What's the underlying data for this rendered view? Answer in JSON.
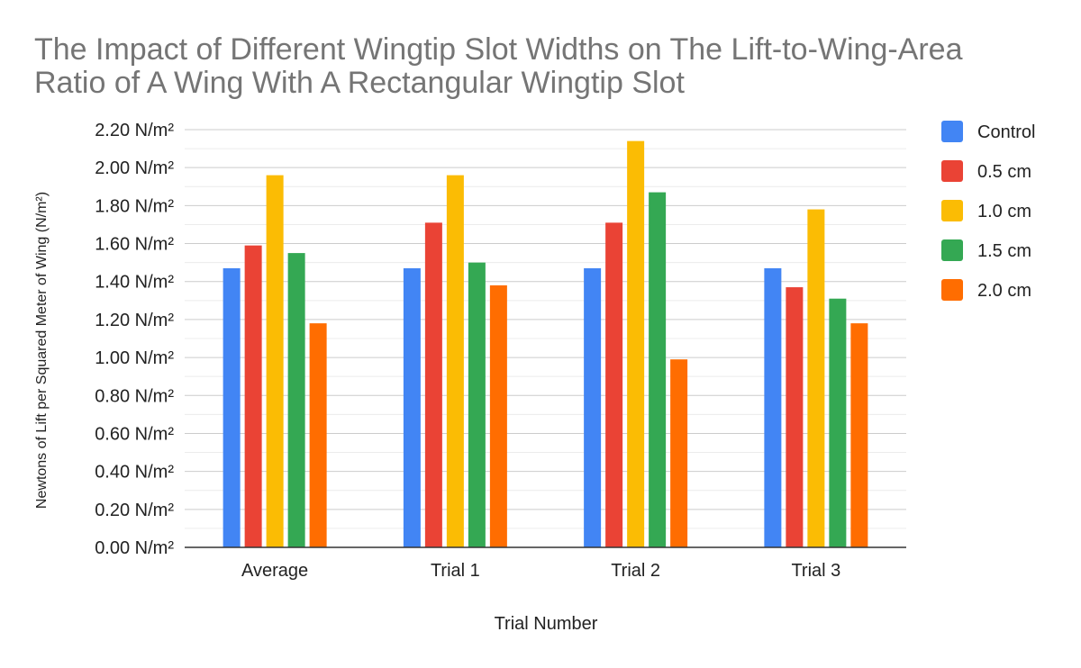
{
  "chart_data": {
    "type": "bar",
    "title_lines": [
      "The Impact of Different Wingtip Slot Widths on The Lift-to-Wing-Area",
      "Ratio of A Wing With A Rectangular Wingtip Slot"
    ],
    "xlabel": "Trial Number",
    "ylabel": "Newtons of Lift per Squared Meter of Wing (N/m²)",
    "categories": [
      "Average",
      "Trial 1",
      "Trial 2",
      "Trial 3"
    ],
    "ylim": [
      0,
      2.2
    ],
    "y_ticks": [
      "0.00 N/m²",
      "0.20 N/m²",
      "0.40 N/m²",
      "0.60 N/m²",
      "0.80 N/m²",
      "1.00 N/m²",
      "1.20 N/m²",
      "1.40 N/m²",
      "1.60 N/m²",
      "1.80 N/m²",
      "2.00 N/m²",
      "2.20 N/m²"
    ],
    "y_tick_values": [
      0,
      0.2,
      0.4,
      0.6,
      0.8,
      1.0,
      1.2,
      1.4,
      1.6,
      1.8,
      2.0,
      2.2
    ],
    "grid": true,
    "legend_position": "right",
    "series": [
      {
        "name": "Control",
        "color": "#4285f4",
        "values": [
          1.47,
          1.47,
          1.47,
          1.47
        ]
      },
      {
        "name": "0.5 cm",
        "color": "#ea4335",
        "values": [
          1.59,
          1.71,
          1.71,
          1.37
        ]
      },
      {
        "name": "1.0 cm",
        "color": "#fbbc04",
        "values": [
          1.96,
          1.96,
          2.14,
          1.78
        ]
      },
      {
        "name": "1.5 cm",
        "color": "#34a853",
        "values": [
          1.55,
          1.5,
          1.87,
          1.31
        ]
      },
      {
        "name": "2.0 cm",
        "color": "#ff6d01",
        "values": [
          1.18,
          1.38,
          0.99,
          1.18
        ]
      }
    ]
  }
}
